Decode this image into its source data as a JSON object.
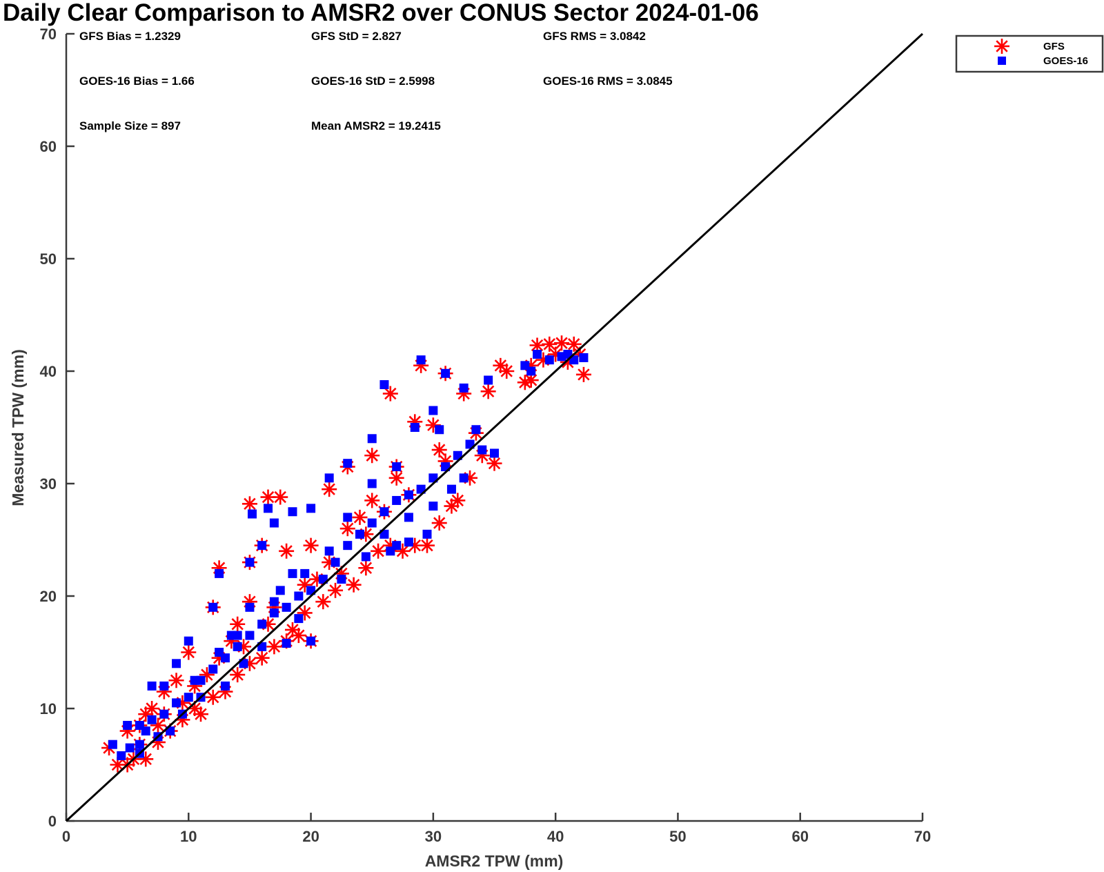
{
  "chart_data": {
    "type": "scatter",
    "title": "Daily Clear Comparison to AMSR2 over CONUS Sector 2024-01-06",
    "xlabel": "AMSR2 TPW (mm)",
    "ylabel": "Measured TPW (mm)",
    "xlim": [
      0,
      70
    ],
    "ylim": [
      0,
      70
    ],
    "xticks": [
      "0",
      "10",
      "20",
      "30",
      "40",
      "50",
      "60",
      "70"
    ],
    "yticks": [
      "0",
      "10",
      "20",
      "30",
      "40",
      "50",
      "60",
      "70"
    ],
    "grid": false,
    "legend_position": "outside-top-right",
    "reference_line": {
      "x": [
        0,
        70
      ],
      "y": [
        0,
        70
      ],
      "color": "#000000"
    },
    "stats": [
      "GFS Bias = 1.2329",
      "GFS StD = 2.827",
      "GFS RMS = 3.0842",
      "GOES-16 Bias = 1.66",
      "GOES-16 StD = 2.5998",
      "GOES-16 RMS = 3.0845",
      "Sample Size = 897",
      "Mean AMSR2 = 19.2415"
    ],
    "series": [
      {
        "name": "GFS",
        "marker": "asterisk",
        "color": "#ff0000",
        "points": [
          [
            3.5,
            6.5
          ],
          [
            4.2,
            5.0
          ],
          [
            5.0,
            5.0
          ],
          [
            5.5,
            5.5
          ],
          [
            6.5,
            5.5
          ],
          [
            6.0,
            6.8
          ],
          [
            7.5,
            7.0
          ],
          [
            8.5,
            8.0
          ],
          [
            9.5,
            9.0
          ],
          [
            11.0,
            9.5
          ],
          [
            12.0,
            11.0
          ],
          [
            13.0,
            11.5
          ],
          [
            14.0,
            13.0
          ],
          [
            15.0,
            14.0
          ],
          [
            16.0,
            14.5
          ],
          [
            17.0,
            15.5
          ],
          [
            18.0,
            16.0
          ],
          [
            19.0,
            16.5
          ],
          [
            20.0,
            16.0
          ],
          [
            21.0,
            19.5
          ],
          [
            22.0,
            20.5
          ],
          [
            23.5,
            21.0
          ],
          [
            24.5,
            22.5
          ],
          [
            25.5,
            24.0
          ],
          [
            26.5,
            24.5
          ],
          [
            27.5,
            24.0
          ],
          [
            28.5,
            24.5
          ],
          [
            29.5,
            24.5
          ],
          [
            30.5,
            26.5
          ],
          [
            31.5,
            28.0
          ],
          [
            32.0,
            28.5
          ],
          [
            33.0,
            30.5
          ],
          [
            34.0,
            32.5
          ],
          [
            35.0,
            31.8
          ],
          [
            34.5,
            38.2
          ],
          [
            32.5,
            38.0
          ],
          [
            31.0,
            39.8
          ],
          [
            29.0,
            40.5
          ],
          [
            26.5,
            38.0
          ],
          [
            25.0,
            32.5
          ],
          [
            23.0,
            31.5
          ],
          [
            21.5,
            29.5
          ],
          [
            20.0,
            24.5
          ],
          [
            18.0,
            24.0
          ],
          [
            17.5,
            28.8
          ],
          [
            16.5,
            28.8
          ],
          [
            15.0,
            28.2
          ],
          [
            16.0,
            24.5
          ],
          [
            15.0,
            23.0
          ],
          [
            12.5,
            22.5
          ],
          [
            12.0,
            19.0
          ],
          [
            10.0,
            15.0
          ],
          [
            9.0,
            12.5
          ],
          [
            8.0,
            11.5
          ],
          [
            7.0,
            10.0
          ],
          [
            6.0,
            8.5
          ],
          [
            5.0,
            8.0
          ],
          [
            10.5,
            12.0
          ],
          [
            13.5,
            16.0
          ],
          [
            15.0,
            19.5
          ],
          [
            17.0,
            19.0
          ],
          [
            19.5,
            21.0
          ],
          [
            21.5,
            23.0
          ],
          [
            23.0,
            26.0
          ],
          [
            25.0,
            28.5
          ],
          [
            27.0,
            30.5
          ],
          [
            28.5,
            35.5
          ],
          [
            30.0,
            35.2
          ],
          [
            30.5,
            33.0
          ],
          [
            33.5,
            34.5
          ],
          [
            37.5,
            39.0
          ],
          [
            38.0,
            39.2
          ],
          [
            38.5,
            42.3
          ],
          [
            39.5,
            42.4
          ],
          [
            40.5,
            42.5
          ],
          [
            41.5,
            42.4
          ],
          [
            42.0,
            41.5
          ],
          [
            42.3,
            39.7
          ],
          [
            41.0,
            40.8
          ],
          [
            38.0,
            40.5
          ],
          [
            36.0,
            40.0
          ],
          [
            35.5,
            40.5
          ],
          [
            39.0,
            41.0
          ],
          [
            40.0,
            41.5
          ],
          [
            8.0,
            9.5
          ],
          [
            11.5,
            13.0
          ],
          [
            14.5,
            15.5
          ],
          [
            19.5,
            18.5
          ],
          [
            22.5,
            22.0
          ],
          [
            24.5,
            25.5
          ],
          [
            26.0,
            27.5
          ],
          [
            18.5,
            17.0
          ],
          [
            12.5,
            14.5
          ],
          [
            6.5,
            9.5
          ],
          [
            7.5,
            8.5
          ],
          [
            9.5,
            10.5
          ],
          [
            20.5,
            21.5
          ],
          [
            16.5,
            17.5
          ],
          [
            14.0,
            17.5
          ],
          [
            28.0,
            29.0
          ],
          [
            27.0,
            31.5
          ],
          [
            31.0,
            32.0
          ],
          [
            24.0,
            27.0
          ],
          [
            10.5,
            10.0
          ]
        ]
      },
      {
        "name": "GOES-16",
        "marker": "square",
        "color": "#0000ff",
        "points": [
          [
            3.8,
            6.8
          ],
          [
            4.5,
            5.8
          ],
          [
            5.2,
            6.5
          ],
          [
            6.0,
            6.8
          ],
          [
            6.5,
            8.0
          ],
          [
            7.0,
            9.0
          ],
          [
            8.0,
            9.5
          ],
          [
            9.0,
            10.5
          ],
          [
            10.0,
            11.0
          ],
          [
            11.0,
            12.5
          ],
          [
            12.0,
            13.5
          ],
          [
            13.0,
            14.5
          ],
          [
            14.0,
            15.5
          ],
          [
            15.0,
            16.5
          ],
          [
            16.0,
            17.5
          ],
          [
            17.0,
            18.5
          ],
          [
            18.0,
            19.0
          ],
          [
            19.0,
            20.0
          ],
          [
            20.0,
            20.5
          ],
          [
            21.0,
            21.5
          ],
          [
            22.0,
            23.0
          ],
          [
            23.0,
            24.5
          ],
          [
            24.0,
            25.5
          ],
          [
            25.0,
            26.5
          ],
          [
            26.0,
            27.5
          ],
          [
            27.0,
            28.5
          ],
          [
            28.0,
            29.0
          ],
          [
            29.0,
            29.5
          ],
          [
            30.0,
            30.5
          ],
          [
            31.0,
            31.5
          ],
          [
            32.0,
            32.5
          ],
          [
            33.0,
            33.5
          ],
          [
            34.0,
            33.0
          ],
          [
            35.0,
            32.7
          ],
          [
            34.5,
            39.2
          ],
          [
            32.5,
            38.5
          ],
          [
            31.0,
            39.8
          ],
          [
            29.0,
            41.0
          ],
          [
            26.0,
            38.8
          ],
          [
            25.0,
            34.0
          ],
          [
            23.0,
            31.8
          ],
          [
            21.5,
            30.5
          ],
          [
            20.0,
            27.8
          ],
          [
            18.5,
            27.5
          ],
          [
            17.0,
            26.5
          ],
          [
            16.5,
            27.8
          ],
          [
            15.2,
            27.3
          ],
          [
            16.0,
            24.5
          ],
          [
            15.0,
            23.0
          ],
          [
            12.5,
            22.0
          ],
          [
            12.0,
            19.0
          ],
          [
            10.0,
            16.0
          ],
          [
            9.0,
            14.0
          ],
          [
            8.0,
            12.0
          ],
          [
            7.0,
            12.0
          ],
          [
            6.0,
            8.5
          ],
          [
            5.0,
            8.5
          ],
          [
            10.5,
            12.5
          ],
          [
            13.5,
            16.5
          ],
          [
            15.0,
            19.0
          ],
          [
            17.0,
            19.5
          ],
          [
            19.5,
            22.0
          ],
          [
            21.5,
            24.0
          ],
          [
            23.0,
            27.0
          ],
          [
            25.0,
            30.0
          ],
          [
            27.0,
            31.5
          ],
          [
            28.5,
            35.0
          ],
          [
            30.0,
            36.5
          ],
          [
            30.5,
            34.8
          ],
          [
            33.5,
            34.8
          ],
          [
            37.5,
            40.5
          ],
          [
            38.0,
            40.0
          ],
          [
            38.5,
            41.5
          ],
          [
            39.5,
            41.0
          ],
          [
            40.5,
            41.3
          ],
          [
            41.5,
            41.0
          ],
          [
            42.3,
            41.2
          ],
          [
            41.0,
            41.5
          ],
          [
            26.5,
            24.0
          ],
          [
            28.0,
            24.8
          ],
          [
            29.5,
            25.5
          ],
          [
            27.0,
            24.5
          ],
          [
            20.0,
            16.0
          ],
          [
            18.0,
            15.8
          ],
          [
            13.0,
            12.0
          ],
          [
            11.0,
            11.0
          ],
          [
            8.5,
            8.0
          ],
          [
            6.0,
            6.0
          ],
          [
            7.5,
            7.5
          ],
          [
            9.5,
            9.5
          ],
          [
            14.5,
            14.0
          ],
          [
            16.0,
            15.5
          ],
          [
            19.0,
            18.0
          ],
          [
            22.5,
            21.5
          ],
          [
            24.5,
            23.5
          ],
          [
            26.0,
            25.5
          ],
          [
            28.0,
            27.0
          ],
          [
            30.0,
            28.0
          ],
          [
            31.5,
            29.5
          ],
          [
            32.5,
            30.5
          ],
          [
            12.5,
            15.0
          ],
          [
            14.0,
            16.5
          ],
          [
            17.5,
            20.5
          ],
          [
            18.5,
            22.0
          ]
        ]
      }
    ]
  }
}
